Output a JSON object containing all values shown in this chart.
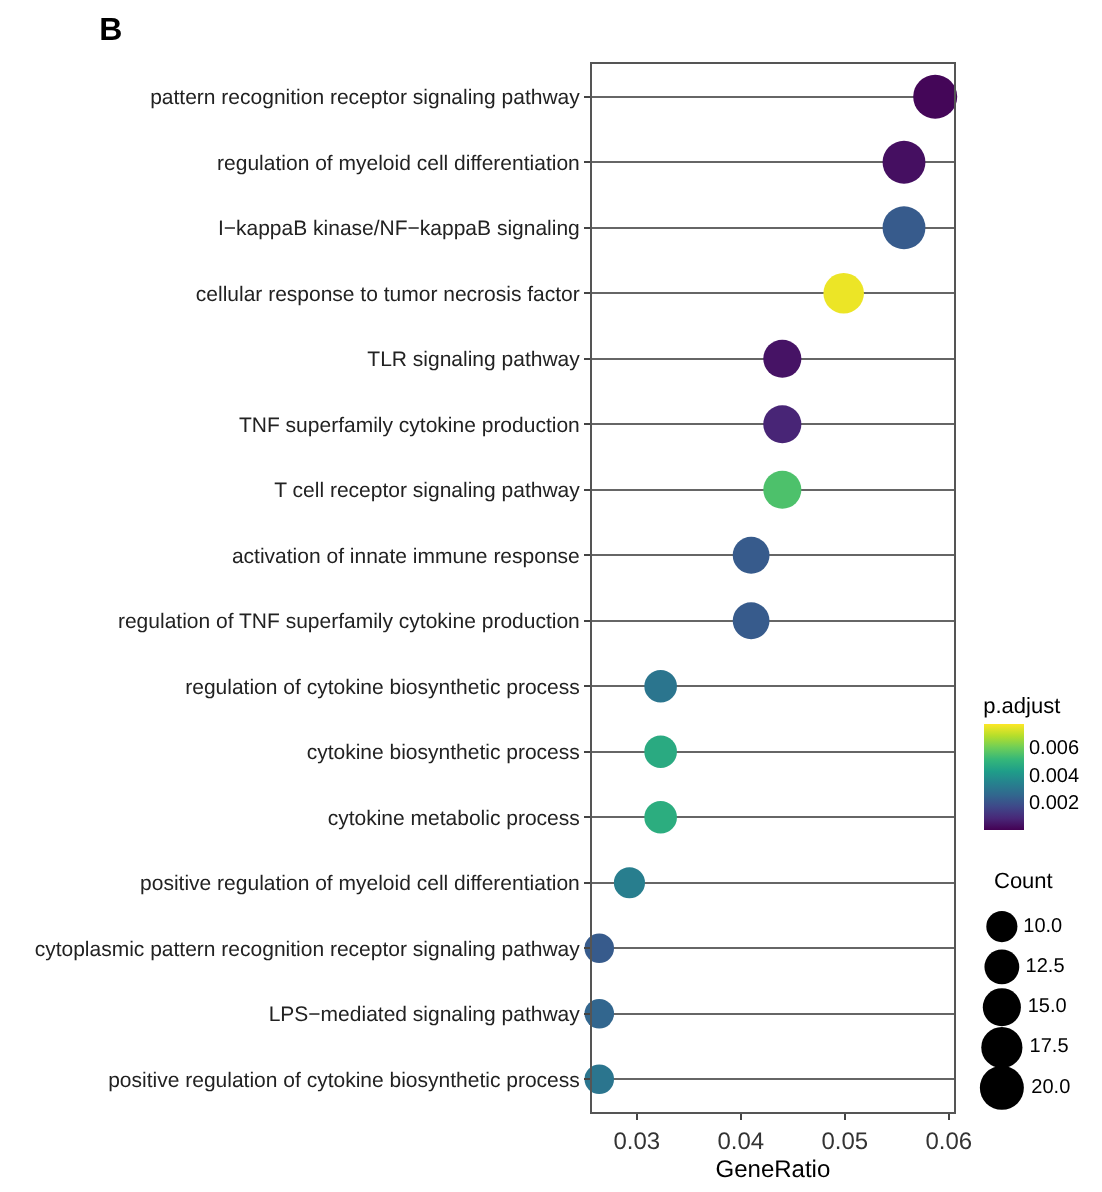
{
  "chart_data": {
    "type": "bubble",
    "title": "B",
    "xlabel": "GeneRatio",
    "legend_title": "Count",
    "clabel": "p.adjust",
    "categories": [
      "pattern recognition receptor signaling pathway",
      "regulation of myeloid cell differentiation",
      "I−kappaB kinase/NF−kappaB signaling",
      "cellular response to tumor necrosis factor",
      "TLR signaling pathway",
      "TNF superfamily cytokine production",
      "T cell receptor signaling pathway",
      "activation of innate immune response",
      "regulation of TNF superfamily cytokine production",
      "regulation of cytokine biosynthetic process",
      "cytokine biosynthetic process",
      "cytokine metabolic process",
      "positive regulation of myeloid cell differentiation",
      "cytoplasmic pattern recognition receptor signaling pathway",
      "LPS−mediated signaling pathway",
      "positive regulation of cytokine biosynthetic process"
    ],
    "orientation": "horizontal",
    "values": [
      0.0587,
      0.0557,
      0.0557,
      0.0499,
      0.044,
      0.044,
      0.044,
      0.041,
      0.041,
      0.0323,
      0.0323,
      0.0323,
      0.0293,
      0.0264,
      0.0264,
      0.0264
    ],
    "sizes": [
      20,
      19,
      19,
      17,
      15,
      15,
      15,
      14,
      14,
      11,
      11,
      11,
      10,
      9,
      9,
      9
    ],
    "cvalues": [
      0.0001,
      0.0003,
      0.0022,
      0.0075,
      0.0004,
      0.0008,
      0.0055,
      0.0022,
      0.0022,
      0.003,
      0.0047,
      0.0048,
      0.0033,
      0.0022,
      0.0025,
      0.003
    ],
    "size_legend": [
      {
        "value": 10,
        "label": "10.0"
      },
      {
        "value": 12.5,
        "label": "12.5"
      },
      {
        "value": 15,
        "label": "15.0"
      },
      {
        "value": 17.5,
        "label": "17.5"
      },
      {
        "value": 20,
        "label": "20.0"
      }
    ],
    "clim": [
      0,
      0.0077
    ],
    "cticks": [
      0.002,
      0.004,
      0.006
    ],
    "xlim": [
      0.0257,
      0.0605
    ],
    "xticks": [
      {
        "value": 0.03,
        "label": "0.03"
      },
      {
        "value": 0.04,
        "label": "0.04"
      },
      {
        "value": 0.05,
        "label": "0.05"
      },
      {
        "value": 0.06,
        "label": "0.06"
      }
    ],
    "grid": "y"
  }
}
